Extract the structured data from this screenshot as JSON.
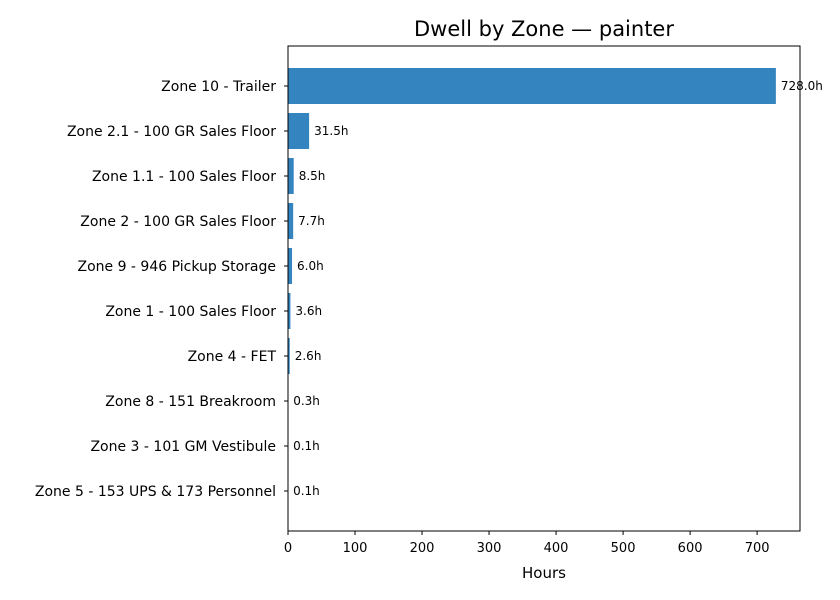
{
  "chart_data": {
    "type": "bar",
    "orientation": "horizontal",
    "title": "Dwell by Zone — painter",
    "xlabel": "Hours",
    "ylabel": "",
    "xlim": [
      0,
      764
    ],
    "xticks": [
      0,
      100,
      200,
      300,
      400,
      500,
      600,
      700
    ],
    "grid": false,
    "bar_color": "#3484bf",
    "categories": [
      "Zone 10 - Trailer",
      "Zone 2.1 - 100 GR Sales Floor",
      "Zone 1.1 - 100 Sales Floor",
      "Zone 2 - 100 GR Sales Floor",
      "Zone 9 - 946 Pickup Storage",
      "Zone 1 - 100 Sales Floor",
      "Zone 4 - FET",
      "Zone 8 - 151 Breakroom",
      "Zone 3 - 101 GM Vestibule",
      "Zone 5 - 153 UPS & 173 Personnel"
    ],
    "values": [
      728.0,
      31.5,
      8.5,
      7.7,
      6.0,
      3.6,
      2.6,
      0.3,
      0.1,
      0.1
    ],
    "data_labels": [
      "728.0h",
      "31.5h",
      "8.5h",
      "7.7h",
      "6.0h",
      "3.6h",
      "2.6h",
      "0.3h",
      "0.1h",
      "0.1h"
    ]
  }
}
